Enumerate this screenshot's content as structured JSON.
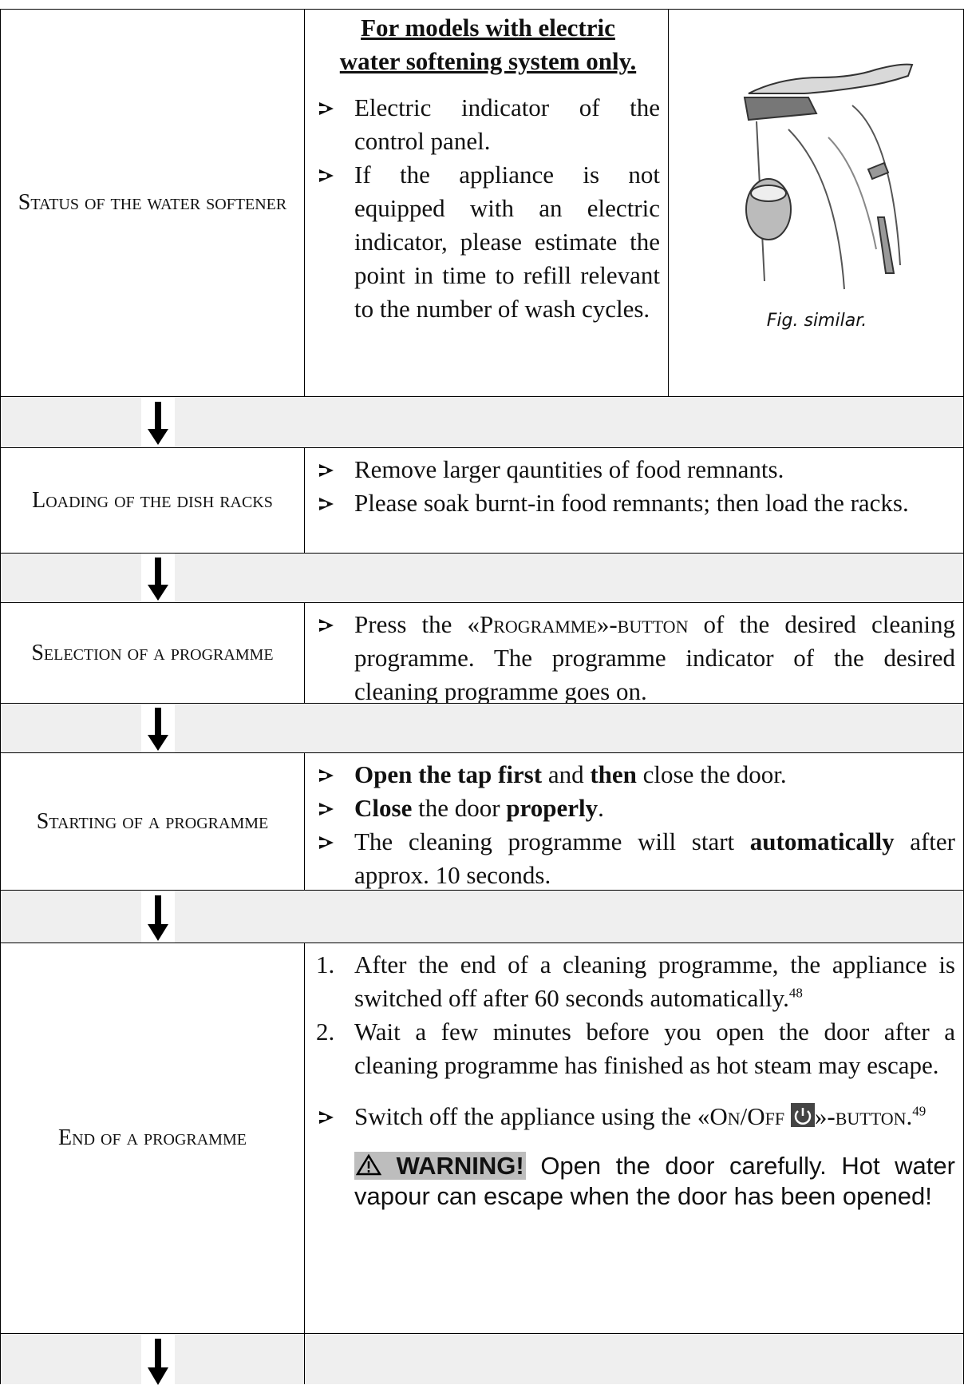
{
  "rows": [
    {
      "label": "Status of the water softener",
      "heading": "For models with electric water softening system only.",
      "items": [
        [
          "Electric indicator of the control panel."
        ],
        [
          "If the appliance is not equipped with an electric indicator, please estimate the point in time to refill relevant to the number of wash cycles."
        ]
      ],
      "figure_caption": "Fig. similar."
    },
    {
      "label": "Loading of the dish racks",
      "items": [
        [
          "Remove larger qauntities of food remnants."
        ],
        [
          "Please soak burnt-in food remnants; then load the racks."
        ]
      ]
    },
    {
      "label": "Selection of a programme",
      "items": [
        [
          "Press the «",
          "Programme",
          "»-",
          "button",
          " of the desired cleaning programme. The programme indicator of the desired cleaning programme goes on."
        ]
      ]
    },
    {
      "label": "Starting of a programme",
      "items": [
        [
          "Open the tap first",
          " and ",
          "then",
          " close the door."
        ],
        [
          "Close",
          " the door ",
          "properly",
          "."
        ],
        [
          "The cleaning programme will start ",
          "automatically",
          " after approx. 10 seconds."
        ]
      ]
    },
    {
      "label": "End of a programme",
      "numbered": [
        {
          "number": "1.",
          "text": "After the end of a cleaning programme, the appliance is switched off after 60 seconds automatically.",
          "footnote": "48"
        },
        {
          "number": "2.",
          "text": "Wait a few minutes before you open the door after a cleaning programme has finished as hot steam may escape."
        }
      ],
      "items": [
        [
          "Switch off the appliance using the «",
          "On/Off",
          "»-",
          "button",
          ".",
          "49"
        ]
      ],
      "warning": {
        "label": "WARNING!",
        "text": "Open the door carefully. Hot water vapour can escape when the door has been opened!"
      }
    }
  ]
}
